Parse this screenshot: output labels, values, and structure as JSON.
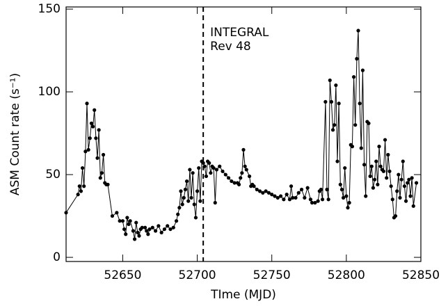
{
  "chart_data": {
    "type": "line",
    "xlabel": "TIme (MJD)",
    "ylabel": "ASM Count rate (s⁻¹)",
    "x": [
      52612,
      52620,
      52621,
      52622,
      52623,
      52624,
      52625,
      52626,
      52627,
      52628,
      52629,
      52630,
      52631,
      52632,
      52633,
      52634,
      52635,
      52636,
      52637,
      52638,
      52639,
      52640,
      52643,
      52646,
      52648,
      52650,
      52651,
      52652,
      52653,
      52654,
      52655,
      52657,
      52658,
      52659,
      52660,
      52661,
      52662,
      52663,
      52665,
      52666,
      52667,
      52668,
      52670,
      52672,
      52674,
      52676,
      52678,
      52680,
      52682,
      52684,
      52686,
      52687,
      52688,
      52689,
      52690,
      52691,
      52692,
      52693,
      52694,
      52695,
      52696,
      52697,
      52698,
      52699,
      52700,
      52701,
      52702,
      52703,
      52704,
      52705,
      52706,
      52707,
      52708,
      52709,
      52710,
      52711,
      52712,
      52713,
      52715,
      52717,
      52719,
      52721,
      52723,
      52725,
      52727,
      52728,
      52729,
      52730,
      52731,
      52732,
      52733,
      52735,
      52736,
      52737,
      52738,
      52740,
      52742,
      52744,
      52746,
      52748,
      52750,
      52752,
      52754,
      52756,
      52758,
      52760,
      52762,
      52763,
      52764,
      52766,
      52768,
      52770,
      52772,
      52774,
      52776,
      52777,
      52779,
      52781,
      52782,
      52783,
      52784,
      52786,
      52787,
      52788,
      52789,
      52790,
      52791,
      52792,
      52793,
      52794,
      52795,
      52796,
      52797,
      52798,
      52799,
      52800,
      52801,
      52802,
      52803,
      52804,
      52805,
      52806,
      52807,
      52808,
      52809,
      52810,
      52811,
      52812,
      52813,
      52814,
      52815,
      52816,
      52817,
      52818,
      52819,
      52820,
      52821,
      52822,
      52823,
      52824,
      52825,
      52826,
      52827,
      52828,
      52829,
      52830,
      52831,
      52832,
      52833,
      52834,
      52835,
      52836,
      52837,
      52838,
      52839,
      52840,
      52841,
      52842,
      52843,
      52844,
      52845,
      52847
    ],
    "values": [
      27,
      38,
      43,
      40,
      54,
      43,
      64,
      93,
      65,
      72,
      81,
      79,
      89,
      72,
      60,
      77,
      48,
      51,
      62,
      45,
      44,
      44,
      25,
      27,
      22,
      22,
      17,
      14,
      24,
      20,
      22,
      16,
      11,
      21,
      15,
      13,
      17,
      18,
      18,
      16,
      14,
      17,
      18,
      16,
      19,
      15,
      17,
      19,
      17,
      18,
      22,
      26,
      30,
      40,
      32,
      36,
      41,
      46,
      34,
      53,
      36,
      51,
      32,
      24,
      40,
      54,
      34,
      58,
      57,
      55,
      49,
      58,
      57,
      51,
      55,
      54,
      33,
      53,
      55,
      52,
      50,
      48,
      46,
      45,
      45,
      44,
      48,
      51,
      65,
      55,
      53,
      49,
      43,
      44,
      43,
      41,
      40,
      39,
      40,
      39,
      38,
      37,
      36,
      37,
      35,
      38,
      35,
      43,
      36,
      36,
      39,
      41,
      36,
      42,
      35,
      33,
      33,
      34,
      40,
      41,
      35,
      94,
      41,
      35,
      107,
      94,
      77,
      80,
      104,
      58,
      93,
      44,
      41,
      36,
      54,
      37,
      30,
      33,
      68,
      67,
      109,
      80,
      120,
      137,
      93,
      66,
      113,
      56,
      37,
      82,
      81,
      49,
      55,
      42,
      47,
      58,
      44,
      67,
      55,
      53,
      52,
      71,
      48,
      62,
      52,
      43,
      35,
      24,
      25,
      40,
      50,
      36,
      47,
      58,
      43,
      34,
      45,
      47,
      37,
      48,
      31,
      45
    ],
    "color": "#000000",
    "xlim": [
      52612,
      52850
    ],
    "xticks": [
      52650,
      52700,
      52750,
      52800,
      52850
    ],
    "ylim": [
      -2.5,
      151.3
    ],
    "yticks": [
      0,
      50,
      100,
      150
    ],
    "vline": {
      "x": 52704,
      "text": [
        "INTEGRAL",
        "Rev 48"
      ]
    }
  }
}
